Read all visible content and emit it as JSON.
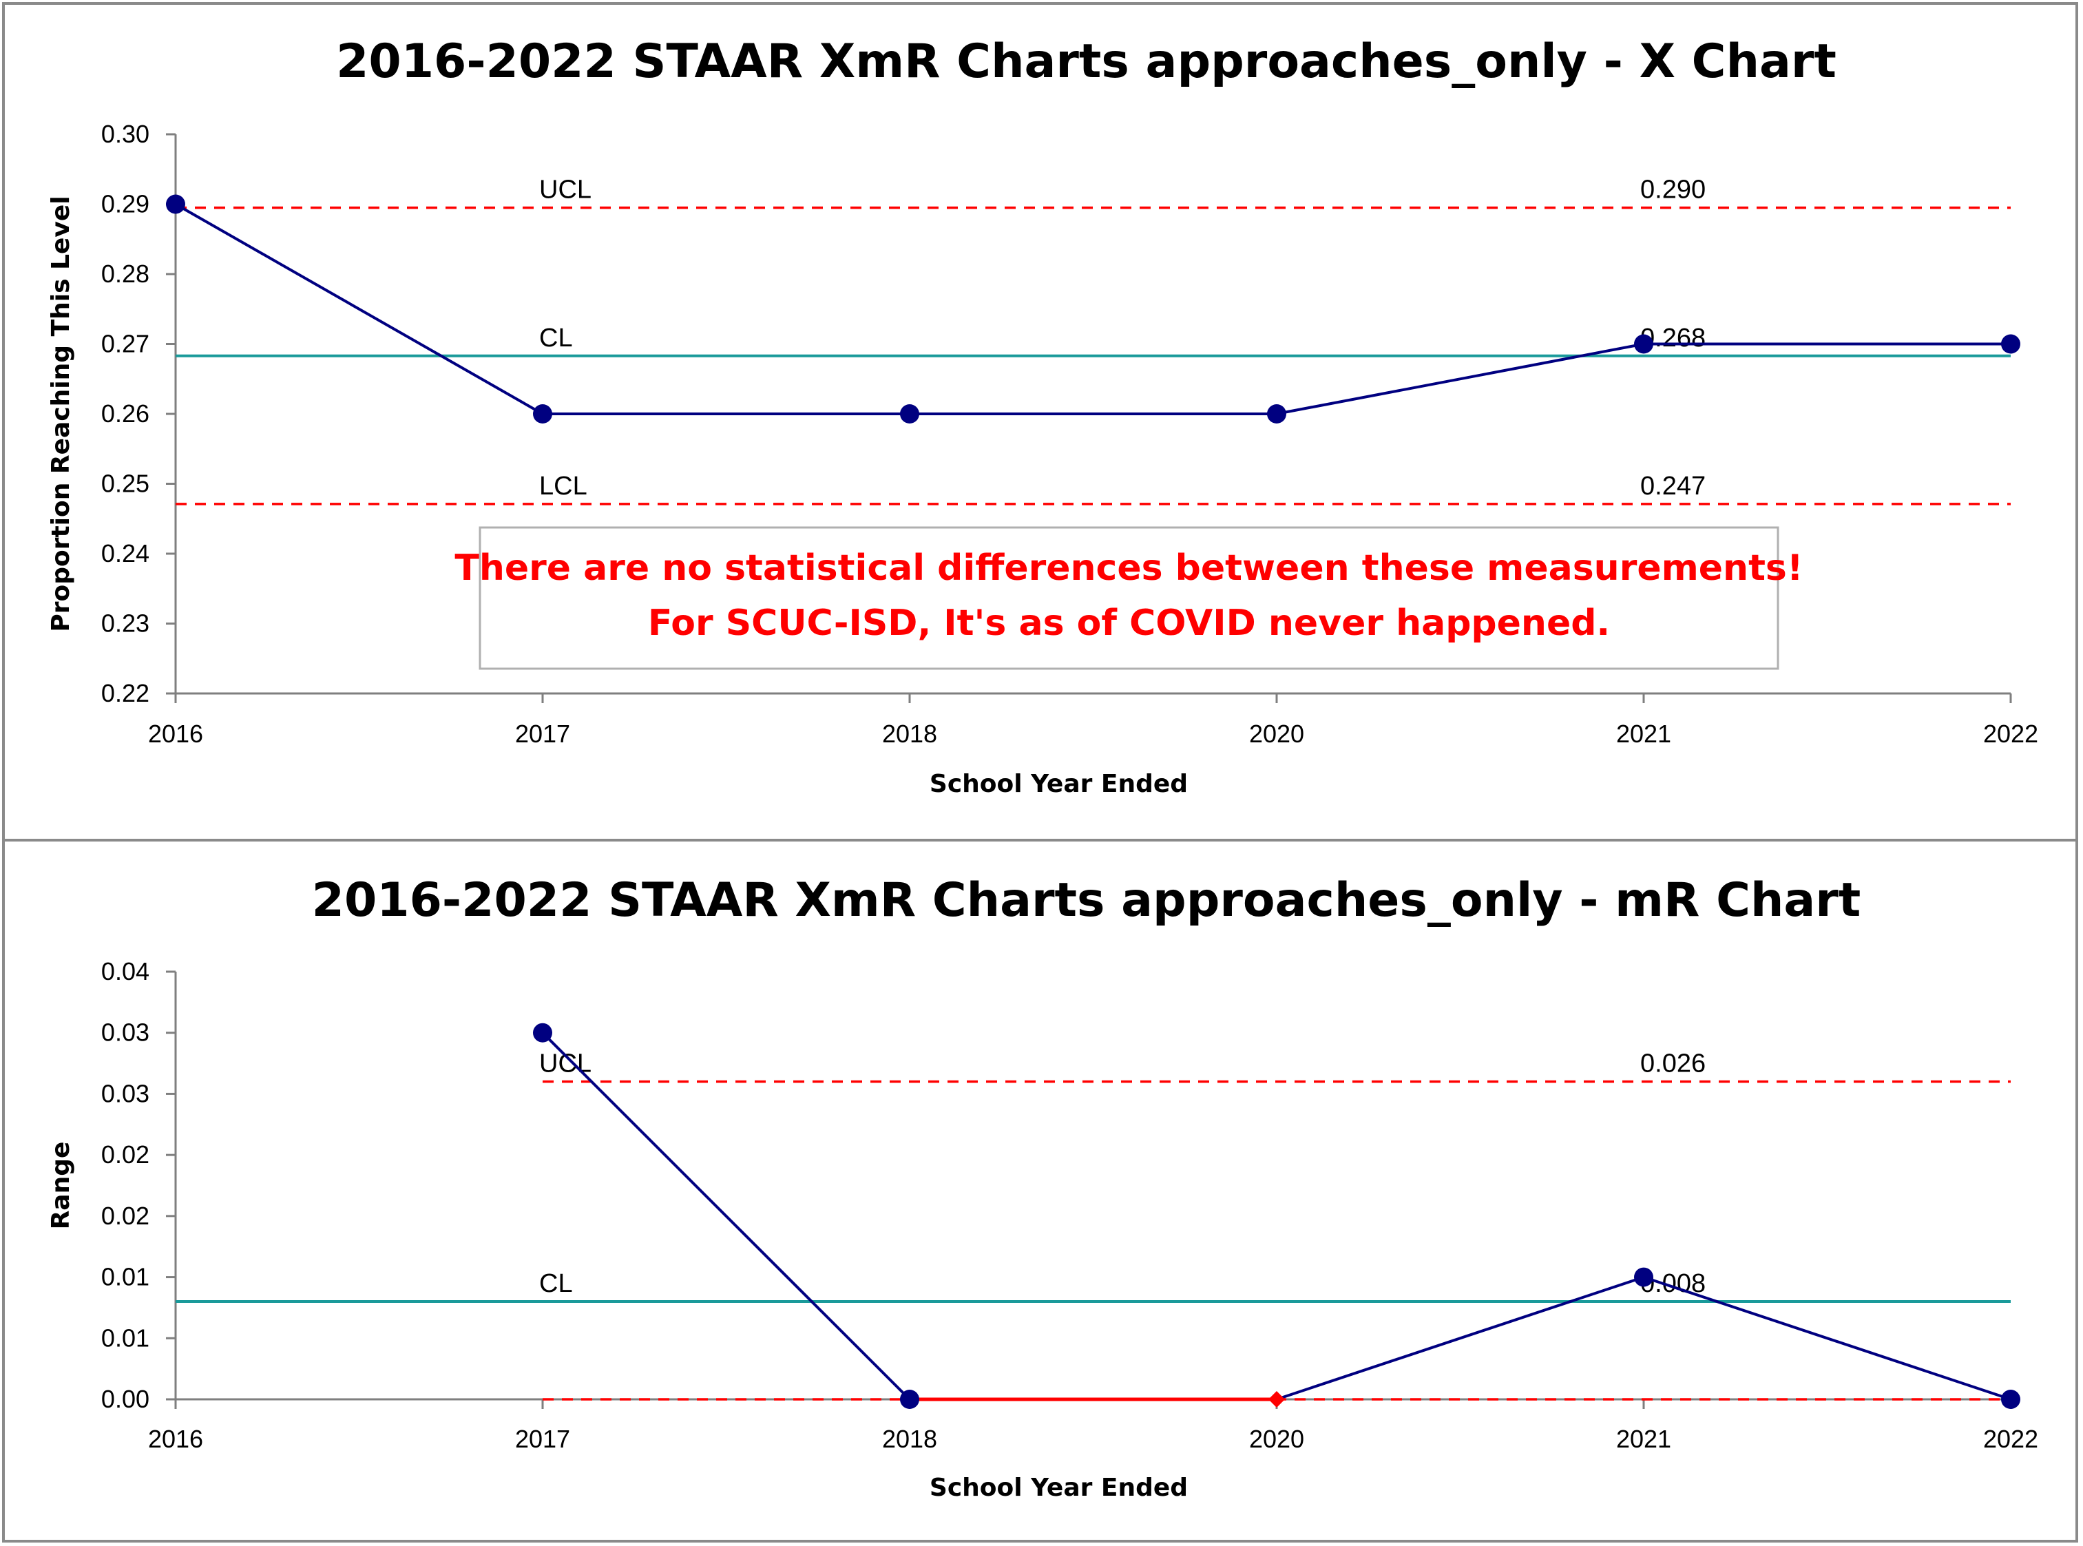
{
  "colors": {
    "series": "#000080",
    "center_line": "#1a9a9a",
    "limit_line": "#ff0000",
    "note": "#ff0000",
    "highlight_point": "#ff0000"
  },
  "chart_data": [
    {
      "type": "line",
      "title": "2016-2022 STAAR XmR Charts approaches_only - X Chart",
      "xlabel": "School Year Ended",
      "ylabel": "Proportion Reaching This Level",
      "categories": [
        "2016",
        "2017",
        "2018",
        "2020",
        "2021",
        "2022"
      ],
      "series": [
        {
          "values": [
            0.29,
            0.26,
            0.26,
            0.26,
            0.27,
            0.27
          ]
        }
      ],
      "ylim": [
        0.22,
        0.3
      ],
      "yticks": [
        "0.30",
        "0.29",
        "0.28",
        "0.27",
        "0.26",
        "0.25",
        "0.24",
        "0.23",
        "0.22"
      ],
      "limits": [
        {
          "name": "UCL",
          "value": 0.2895,
          "label": "0.290",
          "style": "dashed"
        },
        {
          "name": "CL",
          "value": 0.2683,
          "label": "0.268",
          "style": "solid"
        },
        {
          "name": "LCL",
          "value": 0.2471,
          "label": "0.247",
          "style": "dashed"
        }
      ],
      "annotation": [
        "There are no statistical differences between these measurements!",
        "For SCUC-ISD, It's as of COVID never happened."
      ],
      "grid": false
    },
    {
      "type": "line",
      "title": "2016-2022 STAAR XmR Charts approaches_only - mR Chart",
      "xlabel": "School Year Ended",
      "ylabel": "Range",
      "categories": [
        "2016",
        "2017",
        "2018",
        "2020",
        "2021",
        "2022"
      ],
      "series": [
        {
          "values": [
            null,
            0.03,
            0.0,
            0.0,
            0.01,
            0.0
          ]
        }
      ],
      "highlight": {
        "category": "2020",
        "value": 0.0,
        "marker": "diamond"
      },
      "ylim": [
        0.0,
        0.035
      ],
      "yticks": [
        "0.04",
        "0.03",
        "0.03",
        "0.02",
        "0.02",
        "0.01",
        "0.01",
        "0.00"
      ],
      "limits": [
        {
          "name": "UCL",
          "value": 0.026,
          "label": "0.026",
          "style": "dashed"
        },
        {
          "name": "CL",
          "value": 0.008,
          "label": "0.008",
          "style": "solid"
        },
        {
          "name": "LCL",
          "value": 0.0,
          "label": "",
          "style": "dashed"
        }
      ],
      "grid": false
    }
  ]
}
